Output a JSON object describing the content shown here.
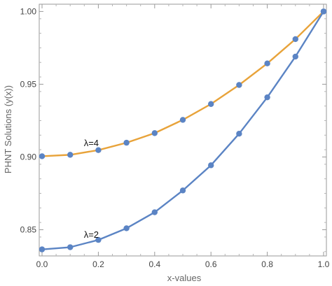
{
  "chart_data": {
    "type": "line",
    "title": "",
    "xlabel": "x-values",
    "ylabel": "PHNT Solutions (y(x))",
    "xlim": [
      -0.01,
      1.01
    ],
    "ylim": [
      0.832,
      1.005
    ],
    "x_ticks": [
      0.0,
      0.2,
      0.4,
      0.6,
      0.8,
      1.0
    ],
    "x_tick_labels": [
      "0.0",
      "0.2",
      "0.4",
      "0.6",
      "0.8",
      "1.0"
    ],
    "y_ticks": [
      0.85,
      0.9,
      0.95,
      1.0
    ],
    "y_tick_labels": [
      "0.85",
      "0.90",
      "0.95",
      "1.00"
    ],
    "grid": false,
    "frame": "box",
    "x": [
      0.0,
      0.1,
      0.2,
      0.3,
      0.4,
      0.5,
      0.6,
      0.7,
      0.8,
      0.9,
      1.0
    ],
    "series": [
      {
        "color": "#E8A33A",
        "marker_color": "#5B84C4",
        "values": [
          0.9005,
          0.9015,
          0.9047,
          0.9098,
          0.9164,
          0.9255,
          0.9364,
          0.9495,
          0.9643,
          0.981,
          1.0
        ]
      },
      {
        "color": "#5B84C4",
        "marker_color": "#5B84C4",
        "values": [
          0.8365,
          0.838,
          0.843,
          0.851,
          0.862,
          0.877,
          0.8943,
          0.916,
          0.941,
          0.969,
          1.0
        ]
      }
    ],
    "annotations": [
      {
        "text": "λ=4",
        "x": 0.175,
        "y": 0.9075
      },
      {
        "text": "λ=2",
        "x": 0.175,
        "y": 0.8445
      }
    ]
  }
}
